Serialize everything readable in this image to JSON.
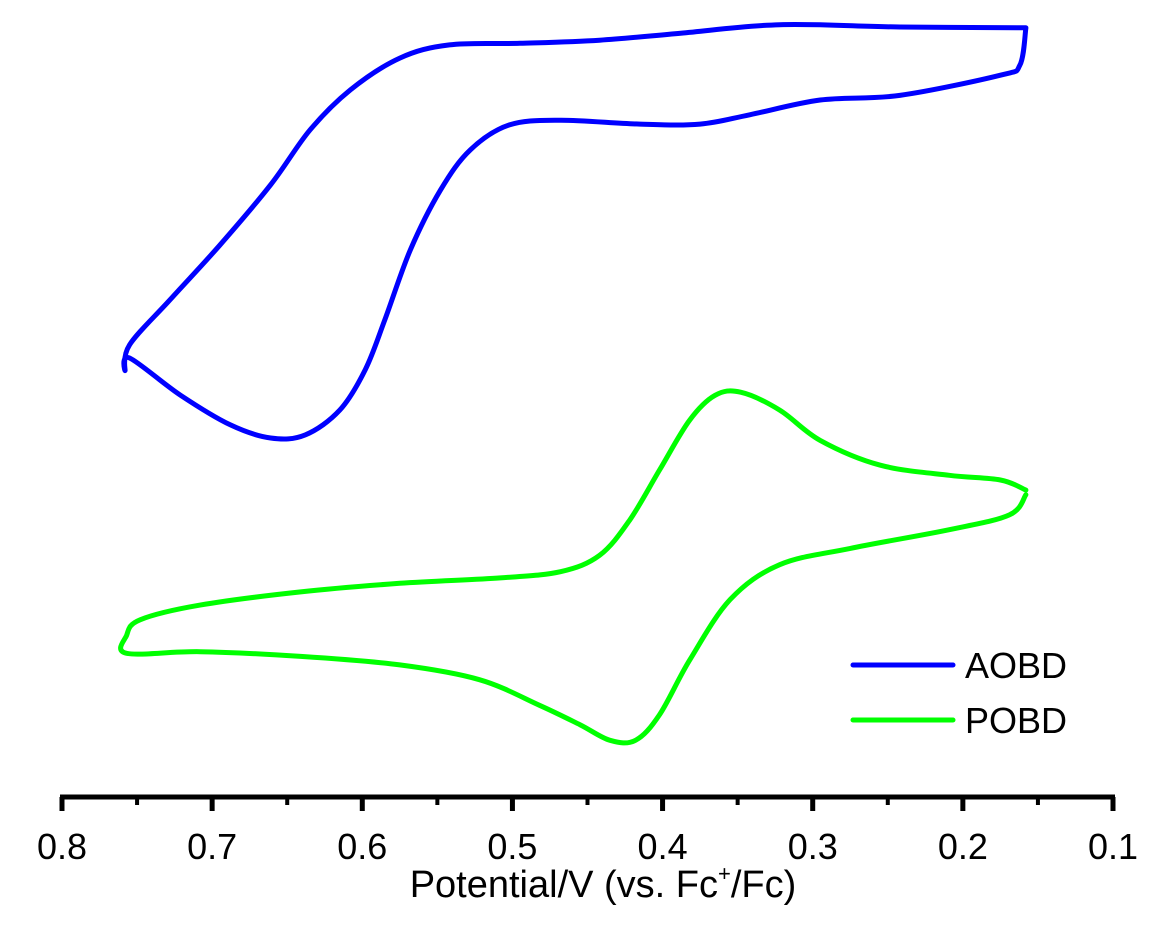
{
  "chart_data": {
    "type": "line",
    "title": "",
    "xlabel": "Potential/V (vs. Fc+/Fc)",
    "xlabel_parts": {
      "main": "Potential/V (vs. Fc",
      "sup": "+",
      "tail": "/Fc)"
    },
    "ylabel": "",
    "xlim": [
      0.8,
      0.1
    ],
    "ylim": [
      0,
      1
    ],
    "y_units": "relative current (arbitrary, no y-axis shown)",
    "x_ticks": [
      "0.8",
      "0.7",
      "0.6",
      "0.5",
      "0.4",
      "0.3",
      "0.2",
      "0.1"
    ],
    "x_tick_values": [
      0.8,
      0.7,
      0.6,
      0.5,
      0.4,
      0.3,
      0.2,
      0.1
    ],
    "x_minor_tick_values": [
      0.75,
      0.65,
      0.55,
      0.45,
      0.35,
      0.25,
      0.15
    ],
    "grid": false,
    "legend_position": "bottom-right",
    "series": [
      {
        "name": "AOBD",
        "color": "#0000ff",
        "points": [
          [
            0.158,
            0.99
          ],
          [
            0.162,
            0.942
          ],
          [
            0.175,
            0.929
          ],
          [
            0.242,
            0.903
          ],
          [
            0.295,
            0.897
          ],
          [
            0.342,
            0.878
          ],
          [
            0.375,
            0.866
          ],
          [
            0.415,
            0.866
          ],
          [
            0.468,
            0.871
          ],
          [
            0.502,
            0.865
          ],
          [
            0.528,
            0.833
          ],
          [
            0.548,
            0.781
          ],
          [
            0.568,
            0.704
          ],
          [
            0.585,
            0.614
          ],
          [
            0.598,
            0.55
          ],
          [
            0.615,
            0.498
          ],
          [
            0.638,
            0.466
          ],
          [
            0.661,
            0.462
          ],
          [
            0.688,
            0.479
          ],
          [
            0.721,
            0.517
          ],
          [
            0.755,
            0.565
          ],
          [
            0.758,
            0.549
          ],
          [
            0.755,
            0.582
          ],
          [
            0.728,
            0.64
          ],
          [
            0.695,
            0.71
          ],
          [
            0.661,
            0.788
          ],
          [
            0.635,
            0.858
          ],
          [
            0.608,
            0.91
          ],
          [
            0.575,
            0.951
          ],
          [
            0.542,
            0.968
          ],
          [
            0.495,
            0.97
          ],
          [
            0.442,
            0.974
          ],
          [
            0.388,
            0.983
          ],
          [
            0.322,
            0.994
          ],
          [
            0.242,
            0.991
          ],
          [
            0.158,
            0.99
          ]
        ]
      },
      {
        "name": "POBD",
        "color": "#00ff00",
        "points": [
          [
            0.158,
            0.395
          ],
          [
            0.175,
            0.408
          ],
          [
            0.209,
            0.414
          ],
          [
            0.255,
            0.427
          ],
          [
            0.295,
            0.459
          ],
          [
            0.322,
            0.498
          ],
          [
            0.348,
            0.521
          ],
          [
            0.365,
            0.517
          ],
          [
            0.382,
            0.485
          ],
          [
            0.402,
            0.421
          ],
          [
            0.422,
            0.356
          ],
          [
            0.442,
            0.311
          ],
          [
            0.468,
            0.29
          ],
          [
            0.508,
            0.282
          ],
          [
            0.575,
            0.275
          ],
          [
            0.641,
            0.264
          ],
          [
            0.708,
            0.247
          ],
          [
            0.748,
            0.228
          ],
          [
            0.757,
            0.208
          ],
          [
            0.757,
            0.185
          ],
          [
            0.708,
            0.187
          ],
          [
            0.641,
            0.181
          ],
          [
            0.575,
            0.17
          ],
          [
            0.522,
            0.151
          ],
          [
            0.482,
            0.118
          ],
          [
            0.455,
            0.093
          ],
          [
            0.435,
            0.073
          ],
          [
            0.418,
            0.073
          ],
          [
            0.402,
            0.106
          ],
          [
            0.382,
            0.176
          ],
          [
            0.355,
            0.254
          ],
          [
            0.322,
            0.299
          ],
          [
            0.275,
            0.32
          ],
          [
            0.209,
            0.344
          ],
          [
            0.169,
            0.363
          ],
          [
            0.158,
            0.389
          ]
        ]
      }
    ]
  }
}
